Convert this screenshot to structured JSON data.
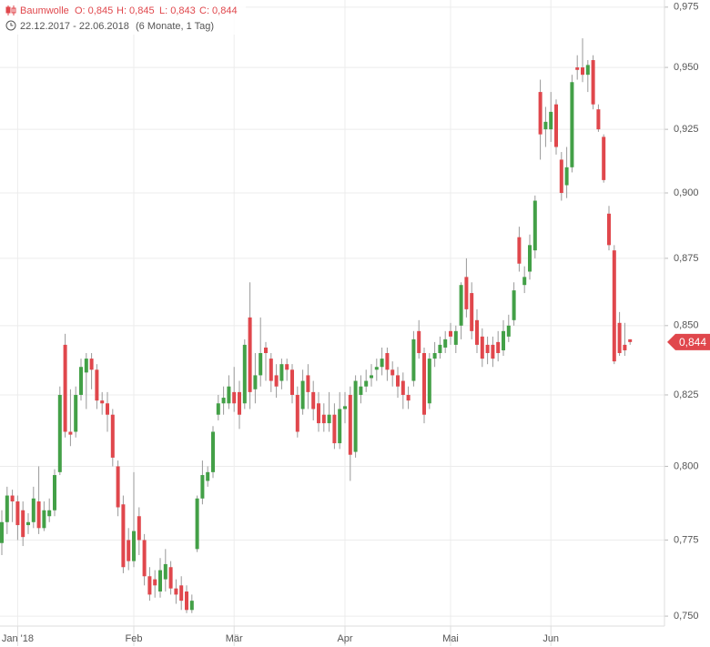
{
  "chart_data": {
    "type": "candlestick",
    "title": "Baumwolle",
    "ohlc_header": [
      "O: 0,845",
      "H: 0,845",
      "L: 0,843",
      "C: 0,844"
    ],
    "date_range": "22.12.2017 - 22.06.2018",
    "period": "(6 Monate, 1 Tag)",
    "log_scale": true,
    "grid": true,
    "up_color": "#43a047",
    "down_color": "#e0474c",
    "ylim": [
      0.7468,
      0.978
    ],
    "yticks": [
      {
        "value": 0.75,
        "label": "0,750"
      },
      {
        "value": 0.775,
        "label": "0,775"
      },
      {
        "value": 0.8,
        "label": "0,800"
      },
      {
        "value": 0.825,
        "label": "0,825"
      },
      {
        "value": 0.85,
        "label": "0,850"
      },
      {
        "value": 0.875,
        "label": "0,875"
      },
      {
        "value": 0.9,
        "label": "0,900"
      },
      {
        "value": 0.925,
        "label": "0,925"
      },
      {
        "value": 0.95,
        "label": "0,950"
      },
      {
        "value": 0.975,
        "label": "0,975"
      }
    ],
    "last_price": {
      "value": 0.844,
      "label": "0,844"
    },
    "categories": [
      null,
      null,
      null,
      "Jan '18",
      null,
      null,
      null,
      null,
      null,
      null,
      null,
      null,
      null,
      null,
      null,
      null,
      null,
      null,
      null,
      null,
      null,
      null,
      null,
      null,
      null,
      "Feb",
      null,
      null,
      null,
      null,
      null,
      null,
      null,
      null,
      null,
      null,
      null,
      null,
      null,
      null,
      null,
      null,
      null,
      null,
      "Mär",
      null,
      null,
      null,
      null,
      null,
      null,
      null,
      null,
      null,
      null,
      null,
      null,
      null,
      null,
      null,
      null,
      null,
      null,
      null,
      null,
      "Apr",
      null,
      null,
      null,
      null,
      null,
      null,
      null,
      null,
      null,
      null,
      null,
      null,
      null,
      null,
      null,
      null,
      null,
      null,
      null,
      "Mai",
      null,
      null,
      null,
      null,
      null,
      null,
      null,
      null,
      null,
      null,
      null,
      null,
      null,
      null,
      null,
      null,
      null,
      null,
      "Jun",
      null,
      null,
      null,
      null,
      null,
      null,
      null,
      null,
      null,
      null,
      null,
      null,
      null,
      null,
      null
    ],
    "open": [
      0.774,
      0.781,
      0.79,
      0.788,
      0.785,
      0.78,
      0.781,
      0.788,
      0.779,
      0.783,
      0.785,
      0.798,
      0.843,
      0.812,
      0.812,
      0.825,
      0.833,
      0.838,
      0.834,
      0.823,
      0.822,
      0.818,
      0.8,
      0.787,
      0.775,
      0.768,
      0.783,
      0.775,
      0.763,
      0.762,
      0.758,
      0.762,
      0.766,
      0.759,
      0.76,
      0.758,
      0.752,
      0.772,
      0.789,
      0.795,
      0.798,
      0.818,
      0.822,
      0.822,
      0.826,
      0.826,
      0.822,
      0.853,
      0.827,
      0.832,
      0.842,
      0.838,
      0.832,
      0.83,
      0.836,
      0.834,
      0.825,
      0.82,
      0.832,
      0.826,
      0.822,
      0.818,
      0.815,
      0.818,
      0.808,
      0.82,
      0.825,
      0.805,
      0.825,
      0.828,
      0.831,
      0.834,
      0.835,
      0.84,
      0.834,
      0.832,
      0.83,
      0.825,
      0.83,
      0.848,
      0.84,
      0.822,
      0.838,
      0.84,
      0.842,
      0.848,
      0.843,
      0.85,
      0.868,
      0.862,
      0.852,
      0.846,
      0.843,
      0.843,
      0.844,
      0.841,
      0.846,
      0.852,
      0.883,
      0.865,
      0.87,
      0.878,
      0.94,
      0.925,
      0.925,
      0.935,
      0.913,
      0.903,
      0.91,
      0.95,
      0.95,
      0.947,
      0.953,
      0.933,
      0.922,
      0.892,
      0.878,
      0.851,
      0.843,
      0.845
    ],
    "high": [
      0.785,
      0.793,
      0.792,
      0.79,
      0.788,
      0.784,
      0.793,
      0.8,
      0.788,
      0.789,
      0.799,
      0.828,
      0.847,
      0.827,
      0.828,
      0.838,
      0.84,
      0.84,
      0.836,
      0.826,
      0.826,
      0.82,
      0.802,
      0.79,
      0.779,
      0.798,
      0.786,
      0.777,
      0.766,
      0.765,
      0.769,
      0.772,
      0.768,
      0.762,
      0.763,
      0.76,
      0.757,
      0.79,
      0.802,
      0.8,
      0.814,
      0.825,
      0.828,
      0.832,
      0.835,
      0.83,
      0.845,
      0.866,
      0.84,
      0.853,
      0.844,
      0.84,
      0.836,
      0.838,
      0.838,
      0.836,
      0.828,
      0.834,
      0.836,
      0.83,
      0.826,
      0.822,
      0.826,
      0.822,
      0.826,
      0.826,
      0.828,
      0.832,
      0.832,
      0.834,
      0.836,
      0.838,
      0.842,
      0.842,
      0.837,
      0.835,
      0.833,
      0.828,
      0.848,
      0.852,
      0.842,
      0.84,
      0.844,
      0.846,
      0.848,
      0.851,
      0.85,
      0.866,
      0.875,
      0.866,
      0.856,
      0.849,
      0.846,
      0.846,
      0.848,
      0.852,
      0.854,
      0.866,
      0.887,
      0.872,
      0.884,
      0.899,
      0.945,
      0.934,
      0.94,
      0.937,
      0.916,
      0.918,
      0.947,
      0.955,
      0.962,
      0.953,
      0.955,
      0.935,
      0.923,
      0.895,
      0.88,
      0.855,
      0.851,
      0.845
    ],
    "low": [
      0.77,
      0.777,
      0.781,
      0.775,
      0.773,
      0.777,
      0.779,
      0.777,
      0.778,
      0.781,
      0.783,
      0.797,
      0.81,
      0.807,
      0.81,
      0.823,
      0.82,
      0.827,
      0.82,
      0.818,
      0.812,
      0.8,
      0.783,
      0.764,
      0.765,
      0.766,
      0.77,
      0.76,
      0.755,
      0.756,
      0.756,
      0.758,
      0.757,
      0.754,
      0.752,
      0.751,
      0.751,
      0.771,
      0.787,
      0.793,
      0.796,
      0.816,
      0.818,
      0.82,
      0.819,
      0.813,
      0.82,
      0.82,
      0.822,
      0.828,
      0.83,
      0.826,
      0.824,
      0.827,
      0.83,
      0.822,
      0.81,
      0.818,
      0.82,
      0.816,
      0.812,
      0.812,
      0.812,
      0.806,
      0.806,
      0.815,
      0.795,
      0.803,
      0.822,
      0.826,
      0.828,
      0.83,
      0.832,
      0.83,
      0.828,
      0.824,
      0.82,
      0.82,
      0.828,
      0.838,
      0.815,
      0.82,
      0.835,
      0.838,
      0.84,
      0.843,
      0.84,
      0.845,
      0.853,
      0.845,
      0.84,
      0.835,
      0.836,
      0.835,
      0.837,
      0.839,
      0.844,
      0.85,
      0.87,
      0.862,
      0.867,
      0.875,
      0.913,
      0.918,
      0.92,
      0.915,
      0.897,
      0.898,
      0.908,
      0.945,
      0.944,
      0.94,
      0.933,
      0.924,
      0.904,
      0.878,
      0.836,
      0.839,
      0.839,
      0.843
    ],
    "close": [
      0.781,
      0.79,
      0.788,
      0.78,
      0.776,
      0.781,
      0.789,
      0.779,
      0.785,
      0.785,
      0.797,
      0.825,
      0.812,
      0.811,
      0.825,
      0.835,
      0.838,
      0.834,
      0.823,
      0.822,
      0.818,
      0.803,
      0.786,
      0.766,
      0.768,
      0.778,
      0.775,
      0.763,
      0.757,
      0.76,
      0.765,
      0.767,
      0.759,
      0.757,
      0.755,
      0.752,
      0.755,
      0.789,
      0.797,
      0.798,
      0.812,
      0.822,
      0.824,
      0.828,
      0.822,
      0.818,
      0.843,
      0.826,
      0.832,
      0.84,
      0.84,
      0.83,
      0.828,
      0.836,
      0.834,
      0.825,
      0.812,
      0.83,
      0.826,
      0.82,
      0.815,
      0.815,
      0.818,
      0.808,
      0.82,
      0.821,
      0.804,
      0.83,
      0.828,
      0.83,
      0.832,
      0.835,
      0.838,
      0.834,
      0.832,
      0.828,
      0.825,
      0.823,
      0.845,
      0.84,
      0.818,
      0.838,
      0.84,
      0.843,
      0.845,
      0.846,
      0.848,
      0.865,
      0.856,
      0.848,
      0.843,
      0.838,
      0.84,
      0.838,
      0.84,
      0.848,
      0.85,
      0.863,
      0.873,
      0.868,
      0.88,
      0.897,
      0.923,
      0.928,
      0.932,
      0.918,
      0.9,
      0.91,
      0.944,
      0.949,
      0.947,
      0.951,
      0.935,
      0.925,
      0.905,
      0.88,
      0.837,
      0.84,
      0.841,
      0.844
    ]
  }
}
